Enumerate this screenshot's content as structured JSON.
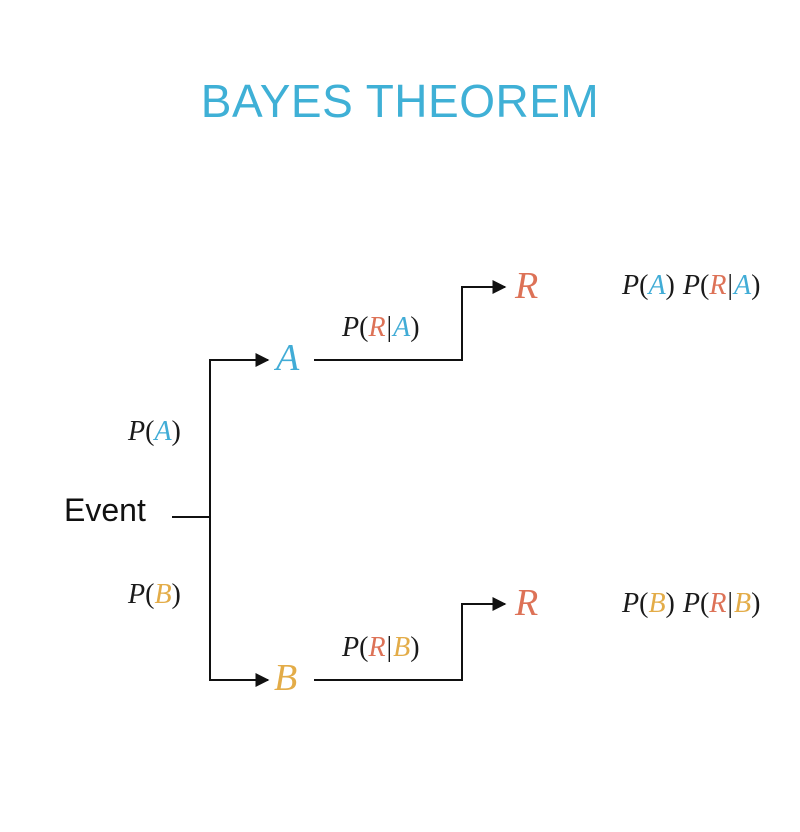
{
  "title": "BAYES THEOREM",
  "event_label": "Event",
  "symbols": {
    "P": "P",
    "A": "A",
    "B": "B",
    "R": "R"
  },
  "colors": {
    "title": "#3fb0d6",
    "event_A": "#41acd6",
    "event_B": "#e3ac48",
    "outcome_R": "#dd7257",
    "text": "#1a1a1a"
  }
}
